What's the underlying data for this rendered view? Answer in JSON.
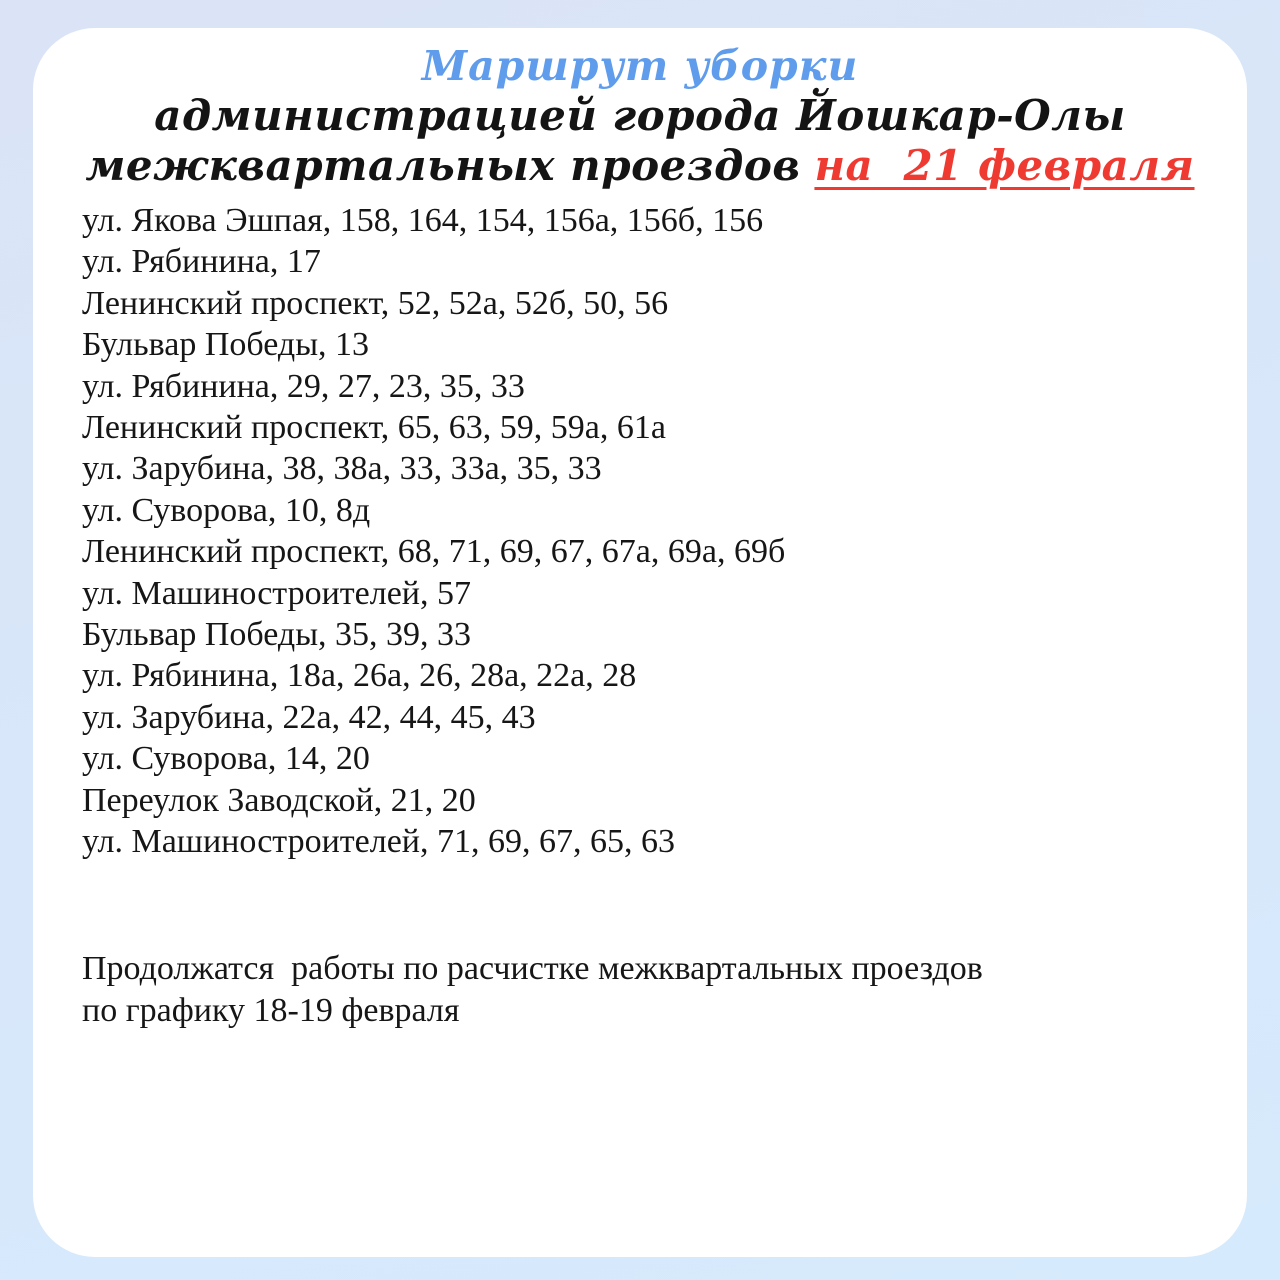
{
  "page": {
    "background_top": "#dae4f6",
    "background_bottom": "#d6eafd",
    "card_background": "#ffffff"
  },
  "header": {
    "title": "Маршрут уборки",
    "title_color": "#5f9cec",
    "subtitle_line1": "администрацией города Йошкар-Олы",
    "subtitle_line2": "межквартальных проездов",
    "date_text": "на  21 февраля",
    "date_color": "#ee3a31"
  },
  "route_list": [
    "ул. Якова Эшпая, 158, 164, 154, 156а, 156б, 156",
    "ул. Рябинина, 17",
    "Ленинский проспект, 52, 52а, 52б, 50, 56",
    "Бульвар Победы, 13",
    "ул. Рябинина, 29, 27, 23, 35, 33",
    "Ленинский проспект, 65, 63, 59, 59а, 61а",
    "ул. Зарубина, 38, 38а, 33, 33а, 35, 33",
    "ул. Суворова, 10, 8д",
    "Ленинский проспект, 68, 71, 69, 67, 67а, 69а, 69б",
    "ул. Машиностроителей, 57",
    "Бульвар Победы, 35, 39, 33",
    "ул. Рябинина, 18а, 26а, 26, 28а, 22а, 28",
    "ул. Зарубина, 22а, 42, 44, 45, 43",
    "ул. Суворова, 14, 20",
    "Переулок Заводской, 21, 20",
    "ул. Машиностроителей, 71, 69, 67, 65, 63"
  ],
  "footer": {
    "lines": [
      "Продолжатся  работы по расчистке межквартальных проездов",
      "по графику 18-19 февраля"
    ]
  }
}
